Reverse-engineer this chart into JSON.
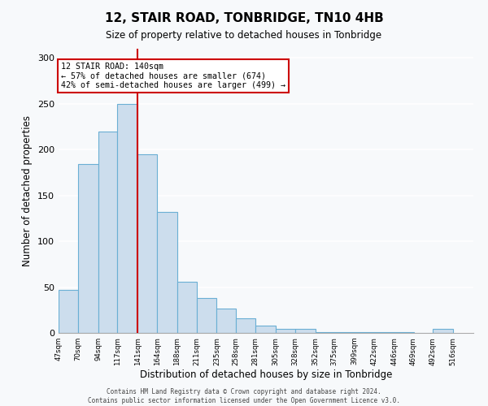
{
  "title": "12, STAIR ROAD, TONBRIDGE, TN10 4HB",
  "subtitle": "Size of property relative to detached houses in Tonbridge",
  "xlabel": "Distribution of detached houses by size in Tonbridge",
  "ylabel": "Number of detached properties",
  "bar_edges": [
    47,
    70,
    94,
    117,
    141,
    164,
    188,
    211,
    235,
    258,
    281,
    305,
    328,
    352,
    375,
    399,
    422,
    446,
    469,
    492,
    516
  ],
  "bar_heights": [
    47,
    184,
    220,
    250,
    195,
    132,
    56,
    38,
    27,
    16,
    8,
    4,
    4,
    1,
    1,
    1,
    1,
    1,
    0,
    4
  ],
  "bar_color": "#ccdded",
  "bar_edge_color": "#6aafd4",
  "vline_x": 141,
  "vline_color": "#cc0000",
  "ylim": [
    0,
    310
  ],
  "yticks": [
    0,
    50,
    100,
    150,
    200,
    250,
    300
  ],
  "annotation_text": "12 STAIR ROAD: 140sqm\n← 57% of detached houses are smaller (674)\n42% of semi-detached houses are larger (499) →",
  "footer_line1": "Contains HM Land Registry data © Crown copyright and database right 2024.",
  "footer_line2": "Contains public sector information licensed under the Open Government Licence v3.0.",
  "bg_color": "#f7f9fb",
  "plot_bg_color": "#f7f9fb",
  "grid_color": "#ffffff",
  "tick_labels": [
    "47sqm",
    "70sqm",
    "94sqm",
    "117sqm",
    "141sqm",
    "164sqm",
    "188sqm",
    "211sqm",
    "235sqm",
    "258sqm",
    "281sqm",
    "305sqm",
    "328sqm",
    "352sqm",
    "375sqm",
    "399sqm",
    "422sqm",
    "446sqm",
    "469sqm",
    "492sqm",
    "516sqm"
  ]
}
